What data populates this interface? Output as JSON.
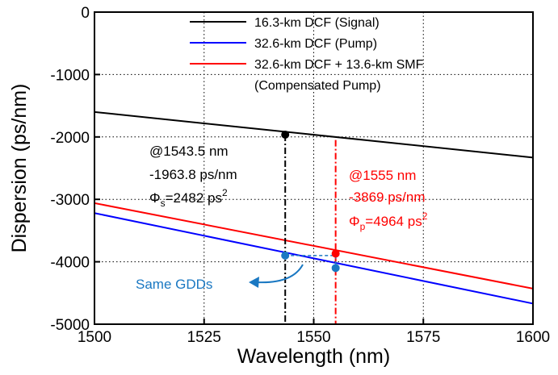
{
  "chart_data": {
    "type": "line",
    "xlabel": "Wavelength (nm)",
    "ylabel": "Dispersion (ps/nm)",
    "xlim": [
      1500,
      1600
    ],
    "ylim": [
      -5000,
      0
    ],
    "xticks": [
      "1500",
      "1525",
      "1550",
      "1575",
      "1600"
    ],
    "yticks": [
      "0",
      "-1000",
      "-2000",
      "-3000",
      "-4000",
      "-5000"
    ],
    "grid": "dotted vertical at each x tick, dotted horizontal at each y tick",
    "legend_position": "top-right",
    "series": [
      {
        "name": "16.3-km DCF (Signal)",
        "color": "#000000",
        "x": [
          1500,
          1600
        ],
        "y": [
          -1600,
          -2330
        ]
      },
      {
        "name": "32.6-km DCF (Pump)",
        "color": "#0000ff",
        "x": [
          1500,
          1600
        ],
        "y": [
          -3220,
          -4670
        ]
      },
      {
        "name": "32.6-km DCF + 13.6-km SMF",
        "name_line2": "(Compensated Pump)",
        "color": "#ff0000",
        "x": [
          1500,
          1600
        ],
        "y": [
          -3060,
          -4430
        ]
      }
    ],
    "markers": [
      {
        "x": 1543.5,
        "y": -1963.8,
        "color": "#000000"
      },
      {
        "x": 1555,
        "y": -3869,
        "color": "#ff0000"
      },
      {
        "x": 1543.5,
        "y": -3900,
        "color": "#1a78c2"
      },
      {
        "x": 1555,
        "y": -4100,
        "color": "#1a78c2"
      }
    ],
    "vlines": [
      {
        "x": 1543.5,
        "y_from": -1963.8,
        "y_to": -5000,
        "color": "#000000",
        "style": "dash-dot"
      },
      {
        "x": 1555,
        "y_from": -2050,
        "y_to": -5000,
        "color": "#ff0000",
        "style": "dash-dot"
      }
    ],
    "annotations": {
      "signal": {
        "color": "#000000",
        "line1": "@1543.5 nm",
        "line2": "-1963.8 ps/nm",
        "phi_symbol": "Φ",
        "phi_sub": "s",
        "phi_value": "=2482 ps",
        "phi_sup": "2"
      },
      "pump": {
        "color": "#ff0000",
        "line1": "@1555 nm",
        "line2": "-3869 ps/nm",
        "phi_symbol": "Φ",
        "phi_sub": "p",
        "phi_value": "=4964 ps",
        "phi_sup": "2"
      },
      "same_gdds": {
        "color": "#1a78c2",
        "text": "Same GDDs"
      }
    }
  }
}
